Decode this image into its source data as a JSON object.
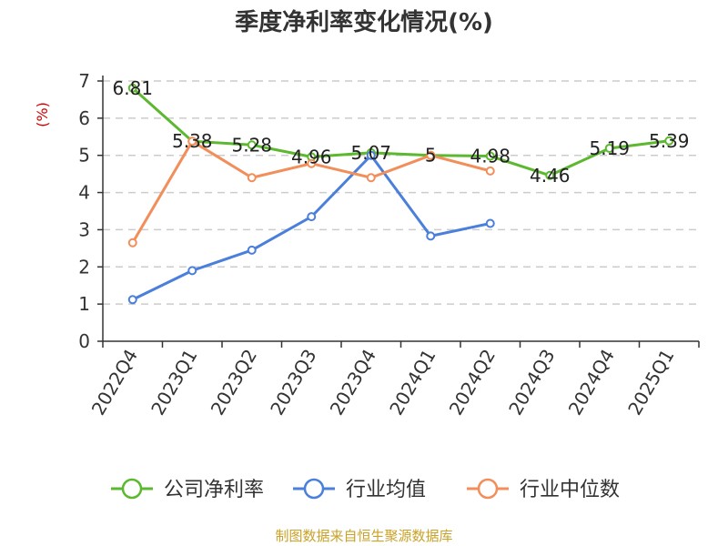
{
  "chart_data": {
    "type": "line",
    "title": "季度净利率变化情况(%)",
    "ylabel": "(%)",
    "categories": [
      "2022Q4",
      "2023Q1",
      "2023Q2",
      "2023Q3",
      "2023Q4",
      "2024Q1",
      "2024Q2",
      "2024Q3",
      "2024Q4",
      "2025Q1"
    ],
    "ylim": [
      0,
      7
    ],
    "yticks": [
      0,
      1,
      2,
      3,
      4,
      5,
      6,
      7
    ],
    "grid": true,
    "legend_position": "bottom",
    "series": [
      {
        "name": "公司净利率",
        "color": "#5cb82f",
        "values": [
          6.81,
          5.38,
          5.28,
          4.96,
          5.07,
          5,
          4.98,
          4.46,
          5.19,
          5.39
        ],
        "labels": [
          "6.81",
          "5.38",
          "5.28",
          "4.96",
          "5.07",
          "5",
          "4.98",
          "4.46",
          "5.19",
          "5.39"
        ]
      },
      {
        "name": "行业均值",
        "color": "#4a7fdb",
        "values": [
          1.12,
          1.9,
          2.45,
          3.35,
          5.0,
          2.83,
          3.17,
          null,
          null,
          null
        ]
      },
      {
        "name": "行业中位数",
        "color": "#f28e5a",
        "values": [
          2.65,
          5.38,
          4.4,
          4.78,
          4.4,
          5.0,
          4.58,
          null,
          null,
          null
        ]
      }
    ]
  },
  "footer": {
    "source": "制图数据来自恒生聚源数据库"
  }
}
